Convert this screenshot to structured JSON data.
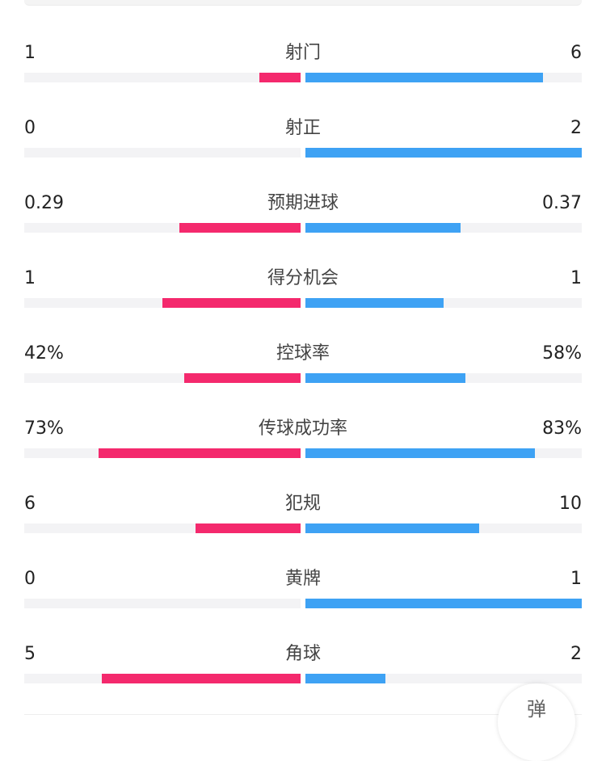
{
  "colors": {
    "home": "#f4296d",
    "away": "#3ea2f4",
    "track": "#f3f3f5"
  },
  "stats": [
    {
      "name": "射门",
      "home": "1",
      "away": "6",
      "home_fill": 0.15,
      "away_fill": 0.86
    },
    {
      "name": "射正",
      "home": "0",
      "away": "2",
      "home_fill": 0.0,
      "away_fill": 1.0
    },
    {
      "name": "预期进球",
      "home": "0.29",
      "away": "0.37",
      "home_fill": 0.44,
      "away_fill": 0.56
    },
    {
      "name": "得分机会",
      "home": "1",
      "away": "1",
      "home_fill": 0.5,
      "away_fill": 0.5
    },
    {
      "name": "控球率",
      "home": "42%",
      "away": "58%",
      "home_fill": 0.42,
      "away_fill": 0.58
    },
    {
      "name": "传球成功率",
      "home": "73%",
      "away": "83%",
      "home_fill": 0.73,
      "away_fill": 0.83
    },
    {
      "name": "犯规",
      "home": "6",
      "away": "10",
      "home_fill": 0.38,
      "away_fill": 0.63
    },
    {
      "name": "黄牌",
      "home": "0",
      "away": "1",
      "home_fill": 0.0,
      "away_fill": 1.0
    },
    {
      "name": "角球",
      "home": "5",
      "away": "2",
      "home_fill": 0.72,
      "away_fill": 0.29
    }
  ],
  "float_button": {
    "label": "弹"
  }
}
